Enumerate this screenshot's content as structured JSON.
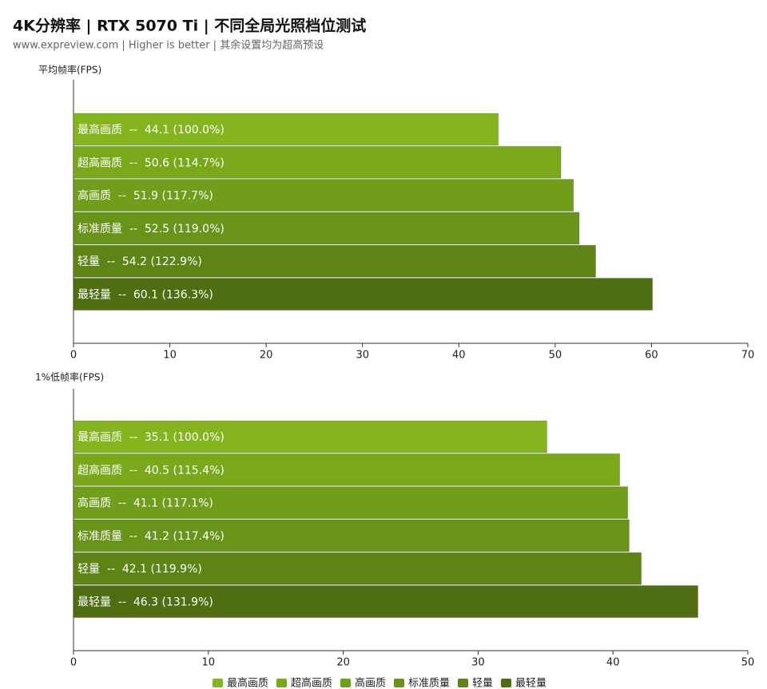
{
  "title": "4K分辨率 | RTX 5070 Ti | 不同全局光照档位测试",
  "subtitle": "www.expreview.com | Higher is better | 其余设置均为超高预设",
  "chart_data": [
    {
      "type": "bar",
      "orientation": "horizontal",
      "y_label": "平均帧率(FPS)",
      "categories": [
        "最高画质",
        "超高画质",
        "高画质",
        "标准质量",
        "轻量",
        "最轻量"
      ],
      "colors": [
        "#84b41e",
        "#79a91b",
        "#709e1a",
        "#69941a",
        "#5e8416",
        "#4f6e12"
      ],
      "values": [
        44.1,
        50.6,
        51.9,
        52.5,
        54.2,
        60.1
      ],
      "value_labels": [
        "最高画质  --  44.1 (100.0%)",
        "超高画质  --  50.6 (114.7%)",
        "高画质  --  51.9 (117.7%)",
        "标准质量  --  52.5 (119.0%)",
        "轻量  --  54.2 (122.9%)",
        "最轻量  --  60.1 (136.3%)"
      ],
      "xlim": [
        0,
        70
      ],
      "xticks": [
        0,
        10,
        20,
        30,
        40,
        50,
        60,
        70
      ]
    },
    {
      "type": "bar",
      "orientation": "horizontal",
      "y_label": "1%低帧率(FPS)",
      "categories": [
        "最高画质",
        "超高画质",
        "高画质",
        "标准质量",
        "轻量",
        "最轻量"
      ],
      "colors": [
        "#84b41e",
        "#79a91b",
        "#709e1a",
        "#69941a",
        "#5e8416",
        "#4f6e12"
      ],
      "values": [
        35.1,
        40.5,
        41.1,
        41.2,
        42.1,
        46.3
      ],
      "value_labels": [
        "最高画质  --  35.1 (100.0%)",
        "超高画质  --  40.5 (115.4%)",
        "高画质  --  41.1 (117.1%)",
        "标准质量  --  41.2 (117.4%)",
        "轻量  --  42.1 (119.9%)",
        "最轻量  --  46.3 (131.9%)"
      ],
      "xlim": [
        0,
        50
      ],
      "xticks": [
        0,
        10,
        20,
        30,
        40,
        50
      ]
    }
  ]
}
